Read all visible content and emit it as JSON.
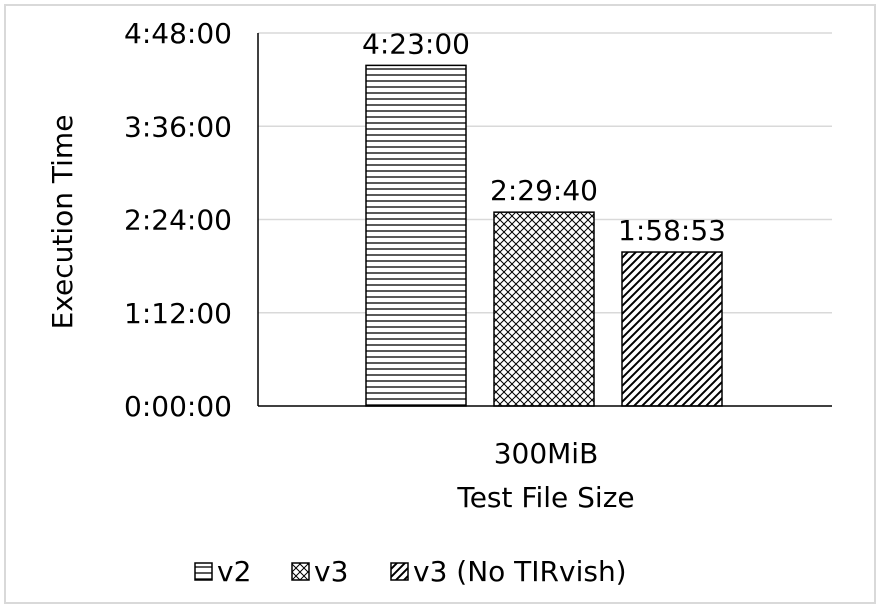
{
  "chart_data": {
    "type": "bar",
    "title": "",
    "xlabel": "Test File Size",
    "ylabel": "Execution Time",
    "categories": [
      "300MiB"
    ],
    "series": [
      {
        "name": "v2",
        "values_seconds": [
          15780
        ],
        "label": "4:23:00",
        "pattern": "horizontal-lines"
      },
      {
        "name": "v3",
        "values_seconds": [
          8980
        ],
        "label": "2:29:40",
        "pattern": "crosshatch"
      },
      {
        "name": "v3 (No TIRvish)",
        "values_seconds": [
          7133
        ],
        "label": "1:58:53",
        "pattern": "diagonal-lines"
      }
    ],
    "yticks_seconds": [
      0,
      4320,
      8640,
      12960,
      17280
    ],
    "ytick_labels": [
      "0:00:00",
      "1:12:00",
      "2:24:00",
      "3:36:00",
      "4:48:00"
    ],
    "ylim_seconds": [
      0,
      17280
    ],
    "grid": "horizontal",
    "legend_position": "bottom"
  }
}
